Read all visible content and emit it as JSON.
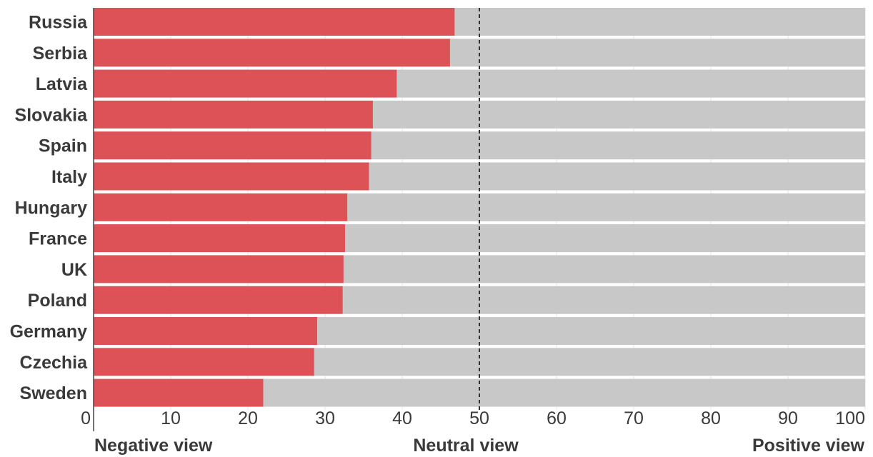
{
  "chart_data": {
    "type": "bar",
    "orientation": "horizontal",
    "stacked": true,
    "categories": [
      "Russia",
      "Serbia",
      "Latvia",
      "Slovakia",
      "Spain",
      "Italy",
      "Hungary",
      "France",
      "UK",
      "Poland",
      "Germany",
      "Czechia",
      "Sweden"
    ],
    "series": [
      {
        "color": "#dc5256",
        "values": [
          46.8,
          46.2,
          39.3,
          36.2,
          36.0,
          35.7,
          32.9,
          32.6,
          32.4,
          32.3,
          29.0,
          28.6,
          22.0
        ]
      },
      {
        "color": "#c8c8c8",
        "values": [
          53.2,
          53.8,
          60.7,
          63.8,
          64.0,
          64.3,
          67.1,
          67.4,
          67.6,
          67.7,
          71.0,
          71.4,
          78.0
        ]
      }
    ],
    "xlim": [
      0,
      100
    ],
    "x_ticks": [
      "0",
      "10",
      "20",
      "30",
      "40",
      "50",
      "60",
      "70",
      "80",
      "90",
      "100"
    ],
    "reference_line": {
      "value": 50,
      "style": "dashed",
      "color": "#333333"
    },
    "scale_labels": {
      "left": "Negative view",
      "middle": "Neutral view",
      "right": "Positive view"
    },
    "grid": true,
    "legend": "none"
  }
}
